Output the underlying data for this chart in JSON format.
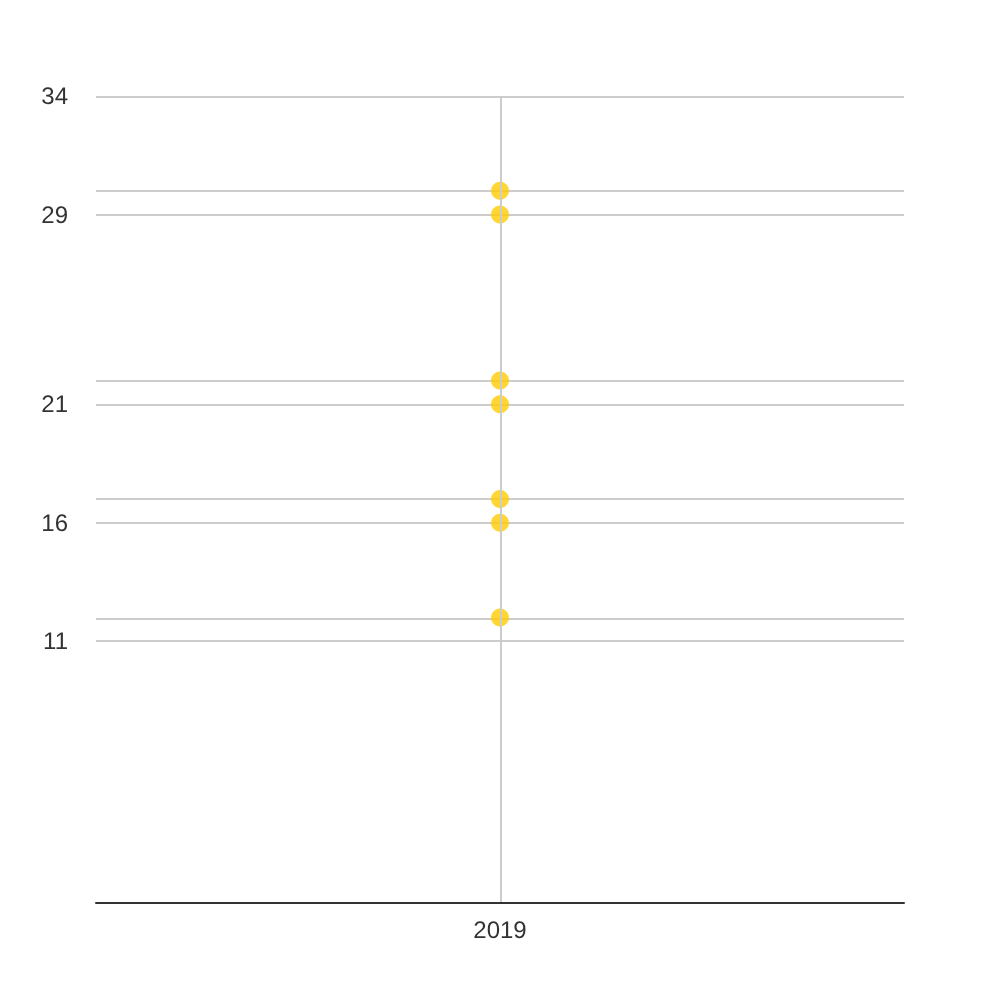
{
  "chart_data": {
    "type": "scatter",
    "categories": [
      "2019"
    ],
    "series": [
      {
        "color": "#ffcc00",
        "values": [
          30
        ]
      },
      {
        "color": "#ffcc00",
        "values": [
          29
        ]
      },
      {
        "color": "#ffcc00",
        "values": [
          22
        ]
      },
      {
        "color": "#ffcc00",
        "values": [
          21
        ]
      },
      {
        "color": "#ffcc00",
        "values": [
          17
        ]
      },
      {
        "color": "#ffcc00",
        "values": [
          16
        ]
      },
      {
        "color": "#ffcc00",
        "values": [
          12
        ]
      }
    ],
    "ylim": [
      0,
      34
    ],
    "yticks": [
      34,
      {
        "value": 30,
        "label": null
      },
      29,
      {
        "value": 22,
        "label": null
      },
      21,
      {
        "value": 17,
        "label": null
      },
      16,
      {
        "value": 12,
        "label": null
      },
      11
    ],
    "grid": true,
    "marker": "circle"
  }
}
